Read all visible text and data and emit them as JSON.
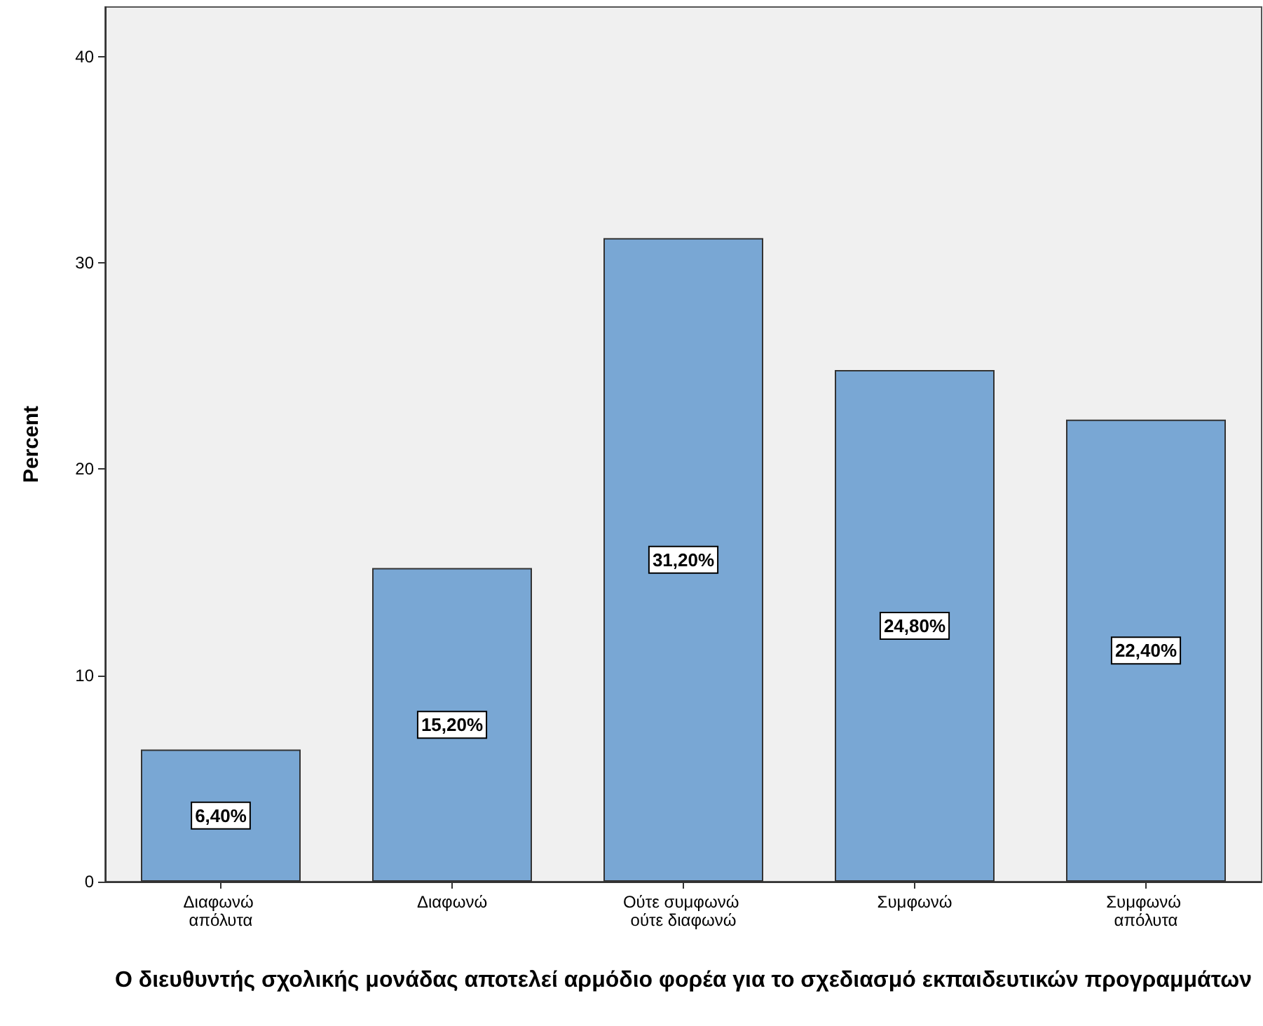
{
  "chart_data": {
    "type": "bar",
    "categories": [
      "Διαφωνώ απόλυτα",
      "Διαφωνώ",
      "Ούτε συμφωνώ ούτε διαφωνώ",
      "Συμφωνώ",
      "Συμφωνώ απόλυτα"
    ],
    "values": [
      6.4,
      15.2,
      31.2,
      24.8,
      22.4
    ],
    "value_labels": [
      "6,40%",
      "15,20%",
      "31,20%",
      "24,80%",
      "22,40%"
    ],
    "color": "#79a7d4",
    "xlabel": "Ο διευθυντής σχολικής μονάδας αποτελεί αρμόδιο φορέα για το σχεδιασμό εκπαιδευτικών προγραμμάτων",
    "ylabel": "Percent",
    "ylim": [
      0,
      42.4
    ],
    "yticks": [
      0,
      10,
      20,
      30,
      40
    ],
    "grid": false
  }
}
